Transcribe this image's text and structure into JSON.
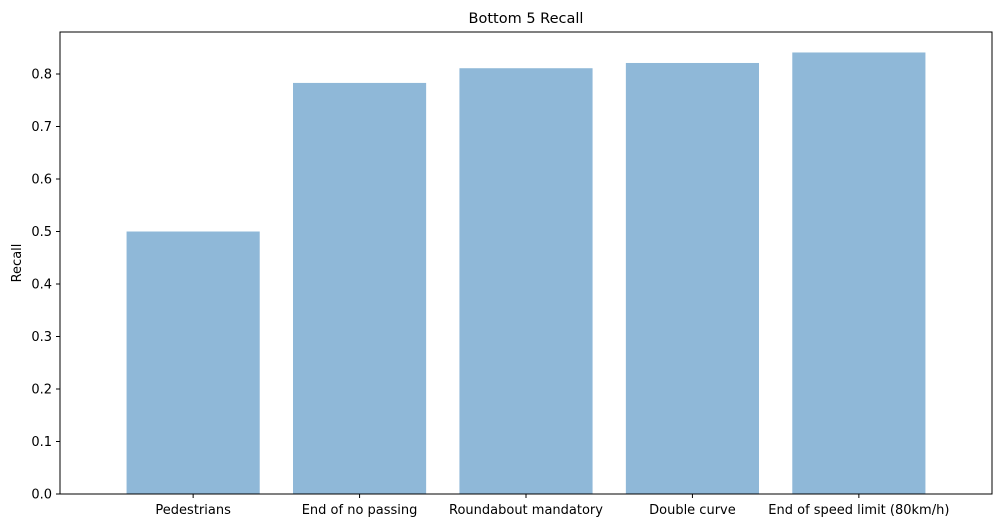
{
  "chart_data": {
    "type": "bar",
    "title": "Bottom 5 Recall",
    "xlabel": "",
    "ylabel": "Recall",
    "categories": [
      "Pedestrians",
      "End of no passing",
      "Roundabout mandatory",
      "Double curve",
      "End of speed limit (80km/h)"
    ],
    "values": [
      0.5,
      0.783,
      0.811,
      0.821,
      0.841
    ],
    "ylim": [
      0,
      0.88
    ],
    "yticks": [
      "0.0",
      "0.1",
      "0.2",
      "0.3",
      "0.4",
      "0.5",
      "0.6",
      "0.7",
      "0.8"
    ],
    "bar_color": "#8fb8d8",
    "grid": false,
    "legend": "none"
  }
}
